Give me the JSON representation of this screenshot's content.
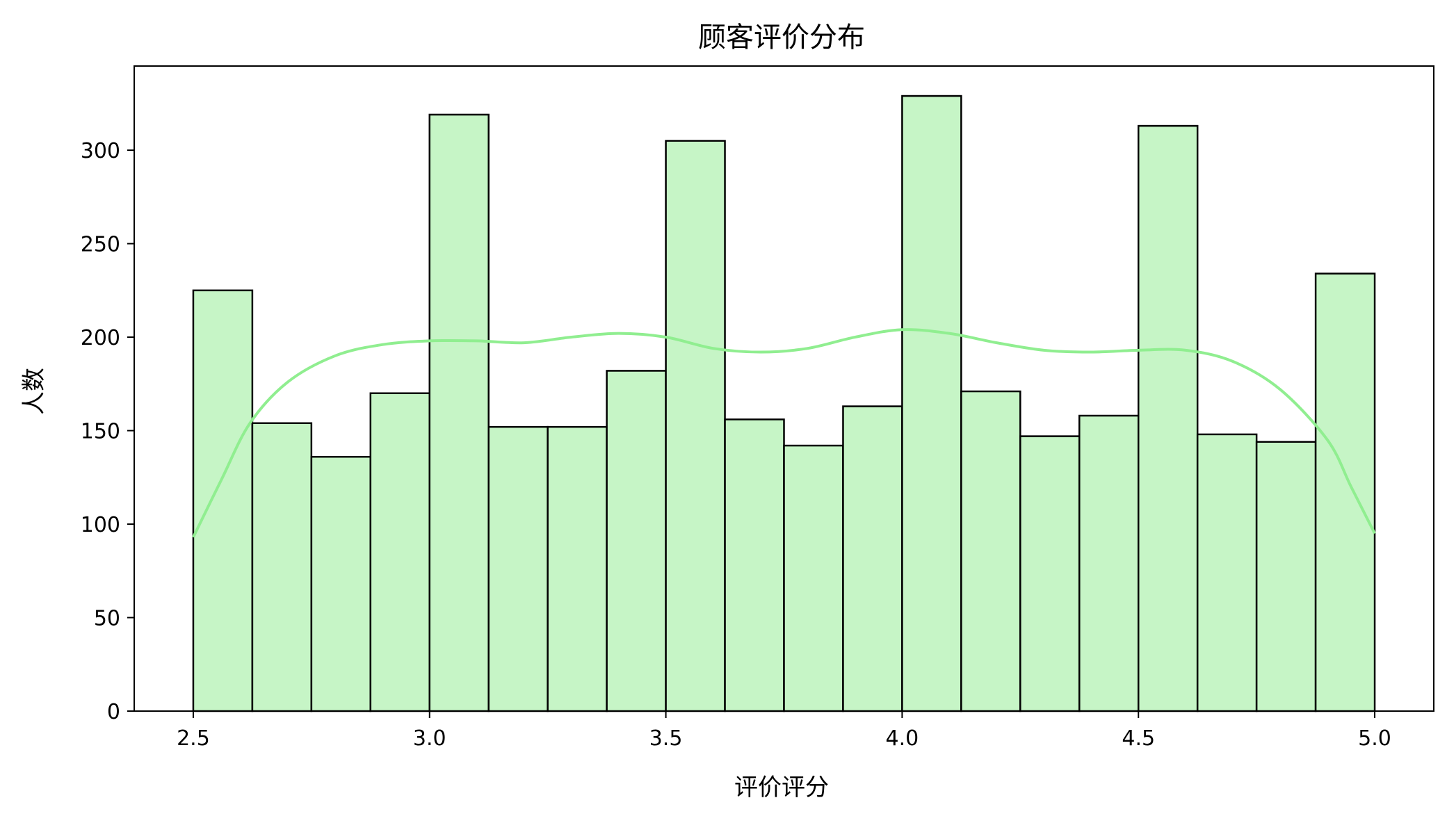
{
  "chart_data": {
    "type": "bar",
    "title": "顾客评价分布",
    "xlabel": "评价评分",
    "ylabel": "人数",
    "xlim": [
      2.375,
      5.125
    ],
    "ylim": [
      0,
      345
    ],
    "x_ticks": [
      "2.5",
      "3.0",
      "3.5",
      "4.0",
      "4.5",
      "5.0"
    ],
    "y_ticks": [
      "0",
      "50",
      "100",
      "150",
      "200",
      "250",
      "300"
    ],
    "bin_edges": [
      2.5,
      2.625,
      2.75,
      2.875,
      3.0,
      3.125,
      3.25,
      3.375,
      3.5,
      3.625,
      3.75,
      3.875,
      4.0,
      4.125,
      4.25,
      4.375,
      4.5,
      4.625,
      4.75,
      4.875,
      5.0
    ],
    "counts": [
      225,
      154,
      136,
      170,
      319,
      152,
      152,
      182,
      305,
      156,
      142,
      163,
      329,
      171,
      147,
      158,
      313,
      148,
      144,
      234
    ],
    "kde": {
      "x": [
        2.5,
        2.56,
        2.62,
        2.7,
        2.8,
        2.9,
        3.0,
        3.1,
        3.2,
        3.3,
        3.4,
        3.5,
        3.6,
        3.7,
        3.8,
        3.9,
        4.0,
        4.1,
        4.2,
        4.3,
        4.4,
        4.5,
        4.6,
        4.7,
        4.8,
        4.9,
        4.95,
        5.0
      ],
      "y": [
        93,
        124,
        154,
        176,
        190,
        196,
        198,
        198,
        197,
        200,
        202,
        200,
        194,
        192,
        194,
        200,
        204,
        202,
        197,
        193,
        192,
        193,
        193,
        187,
        172,
        145,
        120,
        95
      ]
    },
    "bar_color": "#c6f5c6",
    "edge_color": "#000000",
    "kde_color": "#90ee90",
    "grid": false,
    "legend": "none"
  }
}
